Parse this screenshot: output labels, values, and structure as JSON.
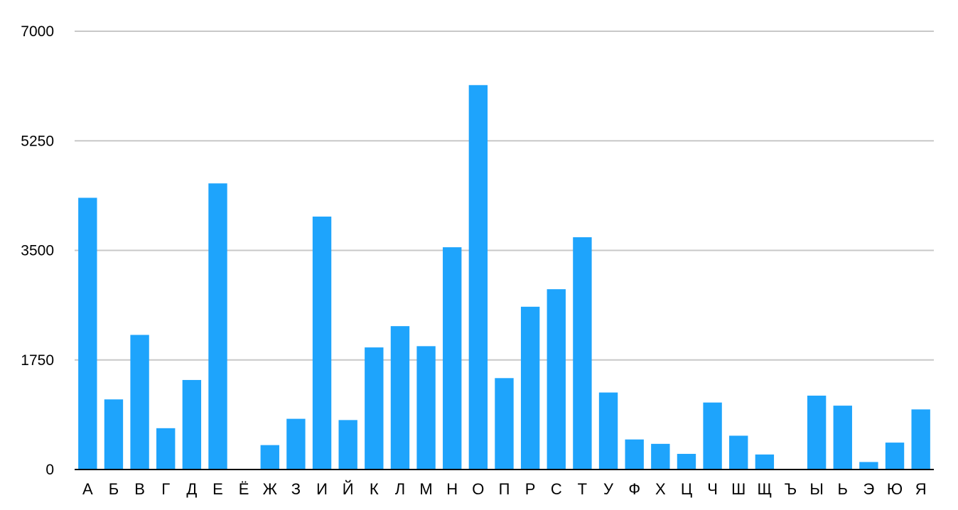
{
  "chart_data": {
    "type": "bar",
    "title": "",
    "xlabel": "",
    "ylabel": "",
    "ylim": [
      0,
      7000
    ],
    "yticks": [
      0,
      1750,
      3500,
      5250,
      7000
    ],
    "ytick_labels": [
      "0",
      "1750",
      "3500",
      "5250",
      "7000"
    ],
    "grid": true,
    "legend": "none",
    "bar_color": "#1ea4fc",
    "categories": [
      "А",
      "Б",
      "В",
      "Г",
      "Д",
      "Е",
      "Ё",
      "Ж",
      "З",
      "И",
      "Й",
      "К",
      "Л",
      "М",
      "Н",
      "О",
      "П",
      "Р",
      "С",
      "Т",
      "У",
      "Ф",
      "Х",
      "Ц",
      "Ч",
      "Ш",
      "Щ",
      "Ъ",
      "Ы",
      "Ь",
      "Э",
      "Ю",
      "Я"
    ],
    "values": [
      4340,
      1120,
      2150,
      660,
      1430,
      4570,
      0,
      390,
      810,
      4040,
      790,
      1950,
      2290,
      1970,
      3550,
      6140,
      1460,
      2600,
      2880,
      3710,
      1230,
      480,
      410,
      250,
      1070,
      540,
      240,
      0,
      1180,
      1020,
      120,
      430,
      960
    ]
  }
}
